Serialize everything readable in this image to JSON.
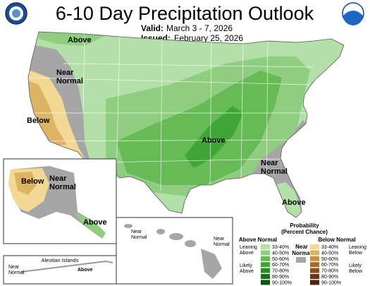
{
  "title": "6-10 Day Precipitation Outlook",
  "valid_label": "Valid:",
  "valid_value": "March 3 - 7, 2026",
  "issued_label": "Issued:",
  "issued_value": "February 25, 2026",
  "logo_left_text": "DEPARTMENT OF COMMERCE",
  "logo_right_text": "NOAA",
  "map_labels": {
    "above_nw": "Above",
    "near_normal_west": "Near\nNormal",
    "below_ca": "Below",
    "above_central": "Above",
    "near_normal_se": "Near\nNormal",
    "above_fl": "Above",
    "ak_below": "Below",
    "ak_near_normal": "Near\nNormal",
    "ak_above": "Above",
    "aleutian": "Aleutian Islands",
    "aleutian_near_normal": "Near\nNormal",
    "aleutian_above": "Above",
    "hi_near_normal_1": "Near\nNormal",
    "hi_near_normal_2": "Near\nNormal"
  },
  "legend": {
    "heading": "Probability",
    "subheading": "(Percent Chance)",
    "above_title": "Above Normal",
    "near_title": "Near\nNormal",
    "below_title": "Below Normal",
    "leaning_above": "Leaning\nAbove",
    "likely_above": "Likely\nAbove",
    "leaning_below": "Leaning\nBelow",
    "likely_below": "Likely\nBelow",
    "ranges": [
      "33-40%",
      "40-50%",
      "50-60%",
      "60-70%",
      "70-80%",
      "80-90%",
      "90-100%"
    ],
    "above_colors": [
      "#b3dfa8",
      "#8fcd80",
      "#66bb57",
      "#3fa535",
      "#278b26",
      "#17701b",
      "#0c5411"
    ],
    "below_colors": [
      "#f2d894",
      "#ddb464",
      "#c98f43",
      "#a8692c",
      "#8a4d1e",
      "#6e3514",
      "#52230c"
    ],
    "near_color": "#a6a6a6"
  }
}
